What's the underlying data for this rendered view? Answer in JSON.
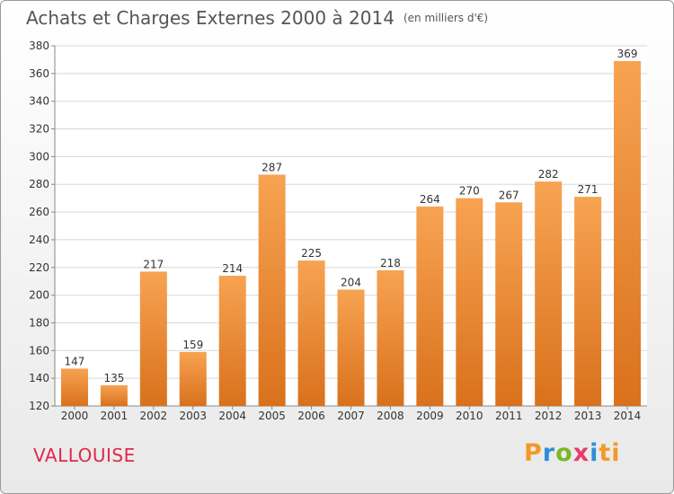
{
  "header": {
    "title": "Achats et Charges Externes 2000 à 2014",
    "unit": "(en milliers d'€)"
  },
  "commune": "VALLOUISE",
  "logo": {
    "letters": [
      "P",
      "r",
      "o",
      "x",
      "i",
      "ti"
    ]
  },
  "colors": {
    "bar_top": "#f7a352",
    "bar_bottom": "#d9711c",
    "grid": "#d8d8d8",
    "axis_text": "#333333",
    "commune": "#e0284a"
  },
  "chart_data": {
    "type": "bar",
    "categories": [
      "2000",
      "2001",
      "2002",
      "2003",
      "2004",
      "2005",
      "2006",
      "2007",
      "2008",
      "2009",
      "2010",
      "2011",
      "2012",
      "2013",
      "2014"
    ],
    "values": [
      147,
      135,
      217,
      159,
      214,
      287,
      225,
      204,
      218,
      264,
      270,
      267,
      282,
      271,
      369
    ],
    "ylim": [
      120,
      380
    ],
    "yticks": [
      120,
      140,
      160,
      180,
      200,
      220,
      240,
      260,
      280,
      300,
      320,
      340,
      360,
      380
    ],
    "grid": true,
    "data_labels": true
  }
}
